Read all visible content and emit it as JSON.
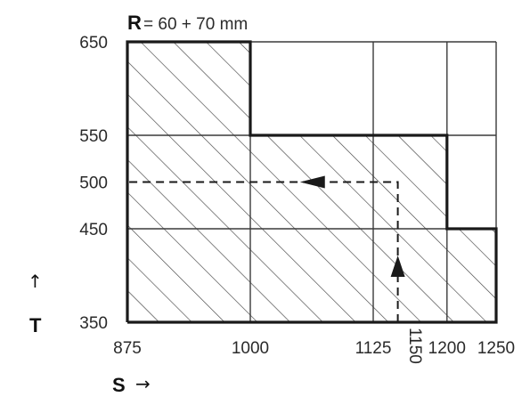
{
  "title": {
    "variable": "R",
    "text": "= 60 + 70 mm"
  },
  "x_axis": {
    "label": "S",
    "arrow": "→",
    "ticks": [
      {
        "value": 875,
        "label": "875"
      },
      {
        "value": 1000,
        "label": "1000"
      },
      {
        "value": 1125,
        "label": "1125"
      },
      {
        "value": 1150,
        "label": "1150",
        "rotated": true
      },
      {
        "value": 1200,
        "label": "1200"
      },
      {
        "value": 1250,
        "label": "1250"
      }
    ],
    "grid": [
      875,
      1000,
      1125,
      1200,
      1250
    ]
  },
  "y_axis": {
    "label": "T",
    "arrow": "↑",
    "ticks": [
      {
        "value": 350,
        "label": "350"
      },
      {
        "value": 450,
        "label": "450"
      },
      {
        "value": 500,
        "label": "500"
      },
      {
        "value": 550,
        "label": "550"
      },
      {
        "value": 650,
        "label": "650"
      }
    ],
    "grid": [
      350,
      450,
      550,
      650
    ]
  },
  "hatched_region": {
    "polygon": [
      [
        875,
        350
      ],
      [
        875,
        650
      ],
      [
        1000,
        650
      ],
      [
        1000,
        550
      ],
      [
        1200,
        550
      ],
      [
        1200,
        450
      ],
      [
        1250,
        450
      ],
      [
        1250,
        350
      ]
    ]
  },
  "path": {
    "points": [
      [
        1150,
        350
      ],
      [
        1150,
        500
      ],
      [
        875,
        500
      ]
    ],
    "arrows": [
      {
        "at": [
          1150,
          410
        ],
        "direction": "up"
      },
      {
        "at": [
          1065,
          500
        ],
        "direction": "left"
      }
    ]
  },
  "colors": {
    "ink": "#1a1a1a",
    "grid": "#3a3a3a",
    "hatch": "#444444"
  }
}
